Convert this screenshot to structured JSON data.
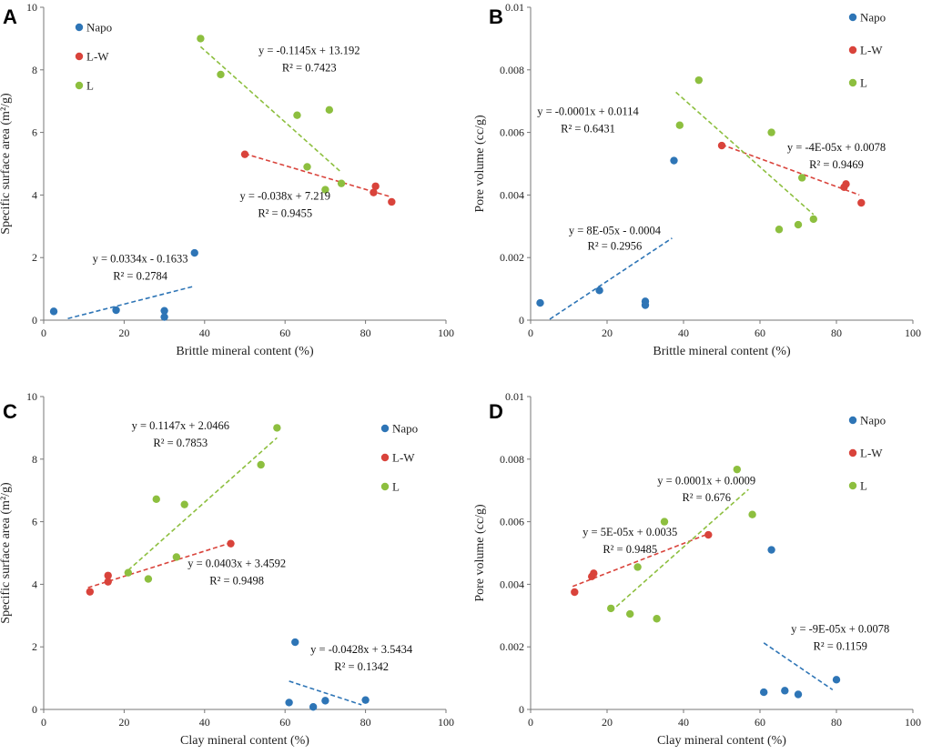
{
  "colors": {
    "Napo": "#2e75b6",
    "L-W": "#d9433b",
    "L": "#8dbf3f"
  },
  "chart_data": [
    {
      "panel": "A",
      "type": "scatter",
      "xlabel": "Brittle mineral content (%)",
      "ylabel": "Specific surface area (m²/g)",
      "xlim": [
        0,
        100
      ],
      "ylim": [
        0,
        10
      ],
      "xticks": [
        0,
        20,
        40,
        60,
        80,
        100
      ],
      "yticks": [
        0,
        2,
        4,
        6,
        8,
        10
      ],
      "ytick_labels": [
        "0",
        "2",
        "4",
        "6",
        "8",
        "10"
      ],
      "legend_position": "top-left",
      "series": [
        {
          "name": "Napo",
          "points": [
            [
              2.5,
              0.28
            ],
            [
              18,
              0.32
            ],
            [
              30,
              0.3
            ],
            [
              30,
              0.1
            ],
            [
              37.5,
              2.15
            ]
          ]
        },
        {
          "name": "L-W",
          "points": [
            [
              50,
              5.3
            ],
            [
              82,
              4.08
            ],
            [
              82.5,
              4.28
            ],
            [
              86.5,
              3.78
            ]
          ]
        },
        {
          "name": "L",
          "points": [
            [
              39,
              9.0
            ],
            [
              44,
              7.85
            ],
            [
              63,
              6.55
            ],
            [
              65.5,
              4.9
            ],
            [
              70,
              4.17
            ],
            [
              71,
              6.72
            ],
            [
              74,
              4.37
            ]
          ]
        }
      ],
      "trendlines": [
        {
          "series": "Napo",
          "x_range": [
            6,
            37
          ]
        },
        {
          "series": "L-W",
          "x_range": [
            50,
            86
          ]
        },
        {
          "series": "L",
          "x_range": [
            39,
            74
          ]
        }
      ],
      "annotations": [
        {
          "text": "y = 0.0334x  - 0.1633",
          "x": 24,
          "y": 1.85
        },
        {
          "text": "R² = 0.2784",
          "x": 24,
          "y": 1.3
        },
        {
          "text": "y = -0.038x + 7.219",
          "x": 60,
          "y": 3.85
        },
        {
          "text": "R² = 0.9455",
          "x": 60,
          "y": 3.3
        },
        {
          "text": "y = -0.1145x + 13.192",
          "x": 66,
          "y": 8.5
        },
        {
          "text": "R² = 0.7423",
          "x": 66,
          "y": 7.95
        }
      ]
    },
    {
      "panel": "B",
      "type": "scatter",
      "xlabel": "Brittle mineral content (%)",
      "ylabel": "Pore volume (cc/g)",
      "xlim": [
        0,
        100
      ],
      "ylim": [
        0,
        0.01
      ],
      "xticks": [
        0,
        20,
        40,
        60,
        80,
        100
      ],
      "yticks": [
        0,
        0.002,
        0.004,
        0.006,
        0.008,
        0.01
      ],
      "ytick_labels": [
        "0",
        "0.002",
        "0.004",
        "0.006",
        "0.008",
        "0.01"
      ],
      "legend_position": "top-right",
      "series": [
        {
          "name": "Napo",
          "points": [
            [
              2.5,
              0.00055
            ],
            [
              18,
              0.00095
            ],
            [
              30,
              0.0006
            ],
            [
              30,
              0.00048
            ],
            [
              37.5,
              0.0051
            ]
          ]
        },
        {
          "name": "L-W",
          "points": [
            [
              50,
              0.00558
            ],
            [
              82,
              0.00425
            ],
            [
              82.5,
              0.00435
            ],
            [
              86.5,
              0.00375
            ]
          ]
        },
        {
          "name": "L",
          "points": [
            [
              39,
              0.00623
            ],
            [
              44,
              0.00767
            ],
            [
              63,
              0.006
            ],
            [
              65,
              0.0029
            ],
            [
              70,
              0.00305
            ],
            [
              71,
              0.00455
            ],
            [
              74,
              0.00323
            ]
          ]
        }
      ],
      "trendlines": [
        {
          "series": "Napo",
          "x_range": [
            5,
            37
          ]
        },
        {
          "series": "L-W",
          "x_range": [
            50,
            86
          ]
        },
        {
          "series": "L",
          "x_range": [
            38,
            74
          ]
        }
      ],
      "annotations": [
        {
          "text": "y = 8E-05x  - 0.0004",
          "x": 22,
          "y": 0.00275
        },
        {
          "text": "R² = 0.2956",
          "x": 22,
          "y": 0.00225
        },
        {
          "text": "y = -0.0001x  + 0.0114",
          "x": 15,
          "y": 0.00655
        },
        {
          "text": "R² = 0.6431",
          "x": 15,
          "y": 0.006
        },
        {
          "text": "y = -4E-05x + 0.0078",
          "x": 80,
          "y": 0.0054
        },
        {
          "text": "R² = 0.9469",
          "x": 80,
          "y": 0.00485
        }
      ]
    },
    {
      "panel": "C",
      "type": "scatter",
      "xlabel": "Clay mineral content (%)",
      "ylabel": "Specific surface area (m²/g)",
      "xlim": [
        0,
        100
      ],
      "ylim": [
        0,
        10
      ],
      "xticks": [
        0,
        20,
        40,
        60,
        80,
        100
      ],
      "yticks": [
        0,
        2,
        4,
        6,
        8,
        10
      ],
      "ytick_labels": [
        "0",
        "2",
        "4",
        "6",
        "8",
        "10"
      ],
      "legend_position": "top-right",
      "series": [
        {
          "name": "Napo",
          "points": [
            [
              61,
              0.22
            ],
            [
              62.5,
              2.15
            ],
            [
              67,
              0.08
            ],
            [
              70,
              0.28
            ],
            [
              80,
              0.3
            ]
          ]
        },
        {
          "name": "L-W",
          "points": [
            [
              11.5,
              3.76
            ],
            [
              16,
              4.08
            ],
            [
              16,
              4.28
            ],
            [
              46.5,
              5.3
            ]
          ]
        },
        {
          "name": "L",
          "points": [
            [
              21,
              4.37
            ],
            [
              26,
              4.17
            ],
            [
              28,
              6.72
            ],
            [
              33,
              4.87
            ],
            [
              35,
              6.55
            ],
            [
              54,
              7.82
            ],
            [
              58,
              9.0
            ]
          ]
        }
      ],
      "trendlines": [
        {
          "series": "Napo",
          "x_range": [
            61,
            79
          ]
        },
        {
          "series": "L-W",
          "x_range": [
            11,
            46
          ]
        },
        {
          "series": "L",
          "x_range": [
            21,
            58
          ]
        }
      ],
      "annotations": [
        {
          "text": "y = 0.1147x + 2.0466",
          "x": 34,
          "y": 8.95
        },
        {
          "text": "R² = 0.7853",
          "x": 34,
          "y": 8.4
        },
        {
          "text": "y = 0.0403x + 3.4592",
          "x": 48,
          "y": 4.55
        },
        {
          "text": "R² = 0.9498",
          "x": 48,
          "y": 4.0
        },
        {
          "text": "y = -0.0428x + 3.5434",
          "x": 79,
          "y": 1.8
        },
        {
          "text": "R² = 0.1342",
          "x": 79,
          "y": 1.25
        }
      ]
    },
    {
      "panel": "D",
      "type": "scatter",
      "xlabel": "Clay mineral content (%)",
      "ylabel": "Pore volume (cc/g)",
      "xlim": [
        0,
        100
      ],
      "ylim": [
        0,
        0.01
      ],
      "xticks": [
        0,
        20,
        40,
        60,
        80,
        100
      ],
      "yticks": [
        0,
        0.002,
        0.004,
        0.006,
        0.008,
        0.01
      ],
      "ytick_labels": [
        "0",
        "0.002",
        "0.004",
        "0.006",
        "0.008",
        "0.01"
      ],
      "legend_position": "top-right",
      "series": [
        {
          "name": "Napo",
          "points": [
            [
              61,
              0.00055
            ],
            [
              63,
              0.0051
            ],
            [
              66.5,
              0.0006
            ],
            [
              70,
              0.00048
            ],
            [
              80,
              0.00095
            ]
          ]
        },
        {
          "name": "L-W",
          "points": [
            [
              11.5,
              0.00375
            ],
            [
              16,
              0.00425
            ],
            [
              16.5,
              0.00435
            ],
            [
              46.5,
              0.00558
            ]
          ]
        },
        {
          "name": "L",
          "points": [
            [
              21,
              0.00323
            ],
            [
              26,
              0.00305
            ],
            [
              28,
              0.00455
            ],
            [
              33,
              0.0029
            ],
            [
              35,
              0.006
            ],
            [
              54,
              0.00767
            ],
            [
              58,
              0.00623
            ]
          ]
        }
      ],
      "trendlines": [
        {
          "series": "Napo",
          "x_range": [
            61,
            79
          ]
        },
        {
          "series": "L-W",
          "x_range": [
            11,
            47
          ]
        },
        {
          "series": "L",
          "x_range": [
            21,
            57
          ]
        }
      ],
      "annotations": [
        {
          "text": "y = 0.0001x + 0.0009",
          "x": 46,
          "y": 0.0072
        },
        {
          "text": "R² = 0.676",
          "x": 46,
          "y": 0.00665
        },
        {
          "text": "y = 5E-05x + 0.0035",
          "x": 26,
          "y": 0.00555
        },
        {
          "text": "R² = 0.9485",
          "x": 26,
          "y": 0.005
        },
        {
          "text": "y = -9E-05x + 0.0078",
          "x": 81,
          "y": 0.00245
        },
        {
          "text": "R² = 0.1159",
          "x": 81,
          "y": 0.0019
        }
      ]
    }
  ]
}
